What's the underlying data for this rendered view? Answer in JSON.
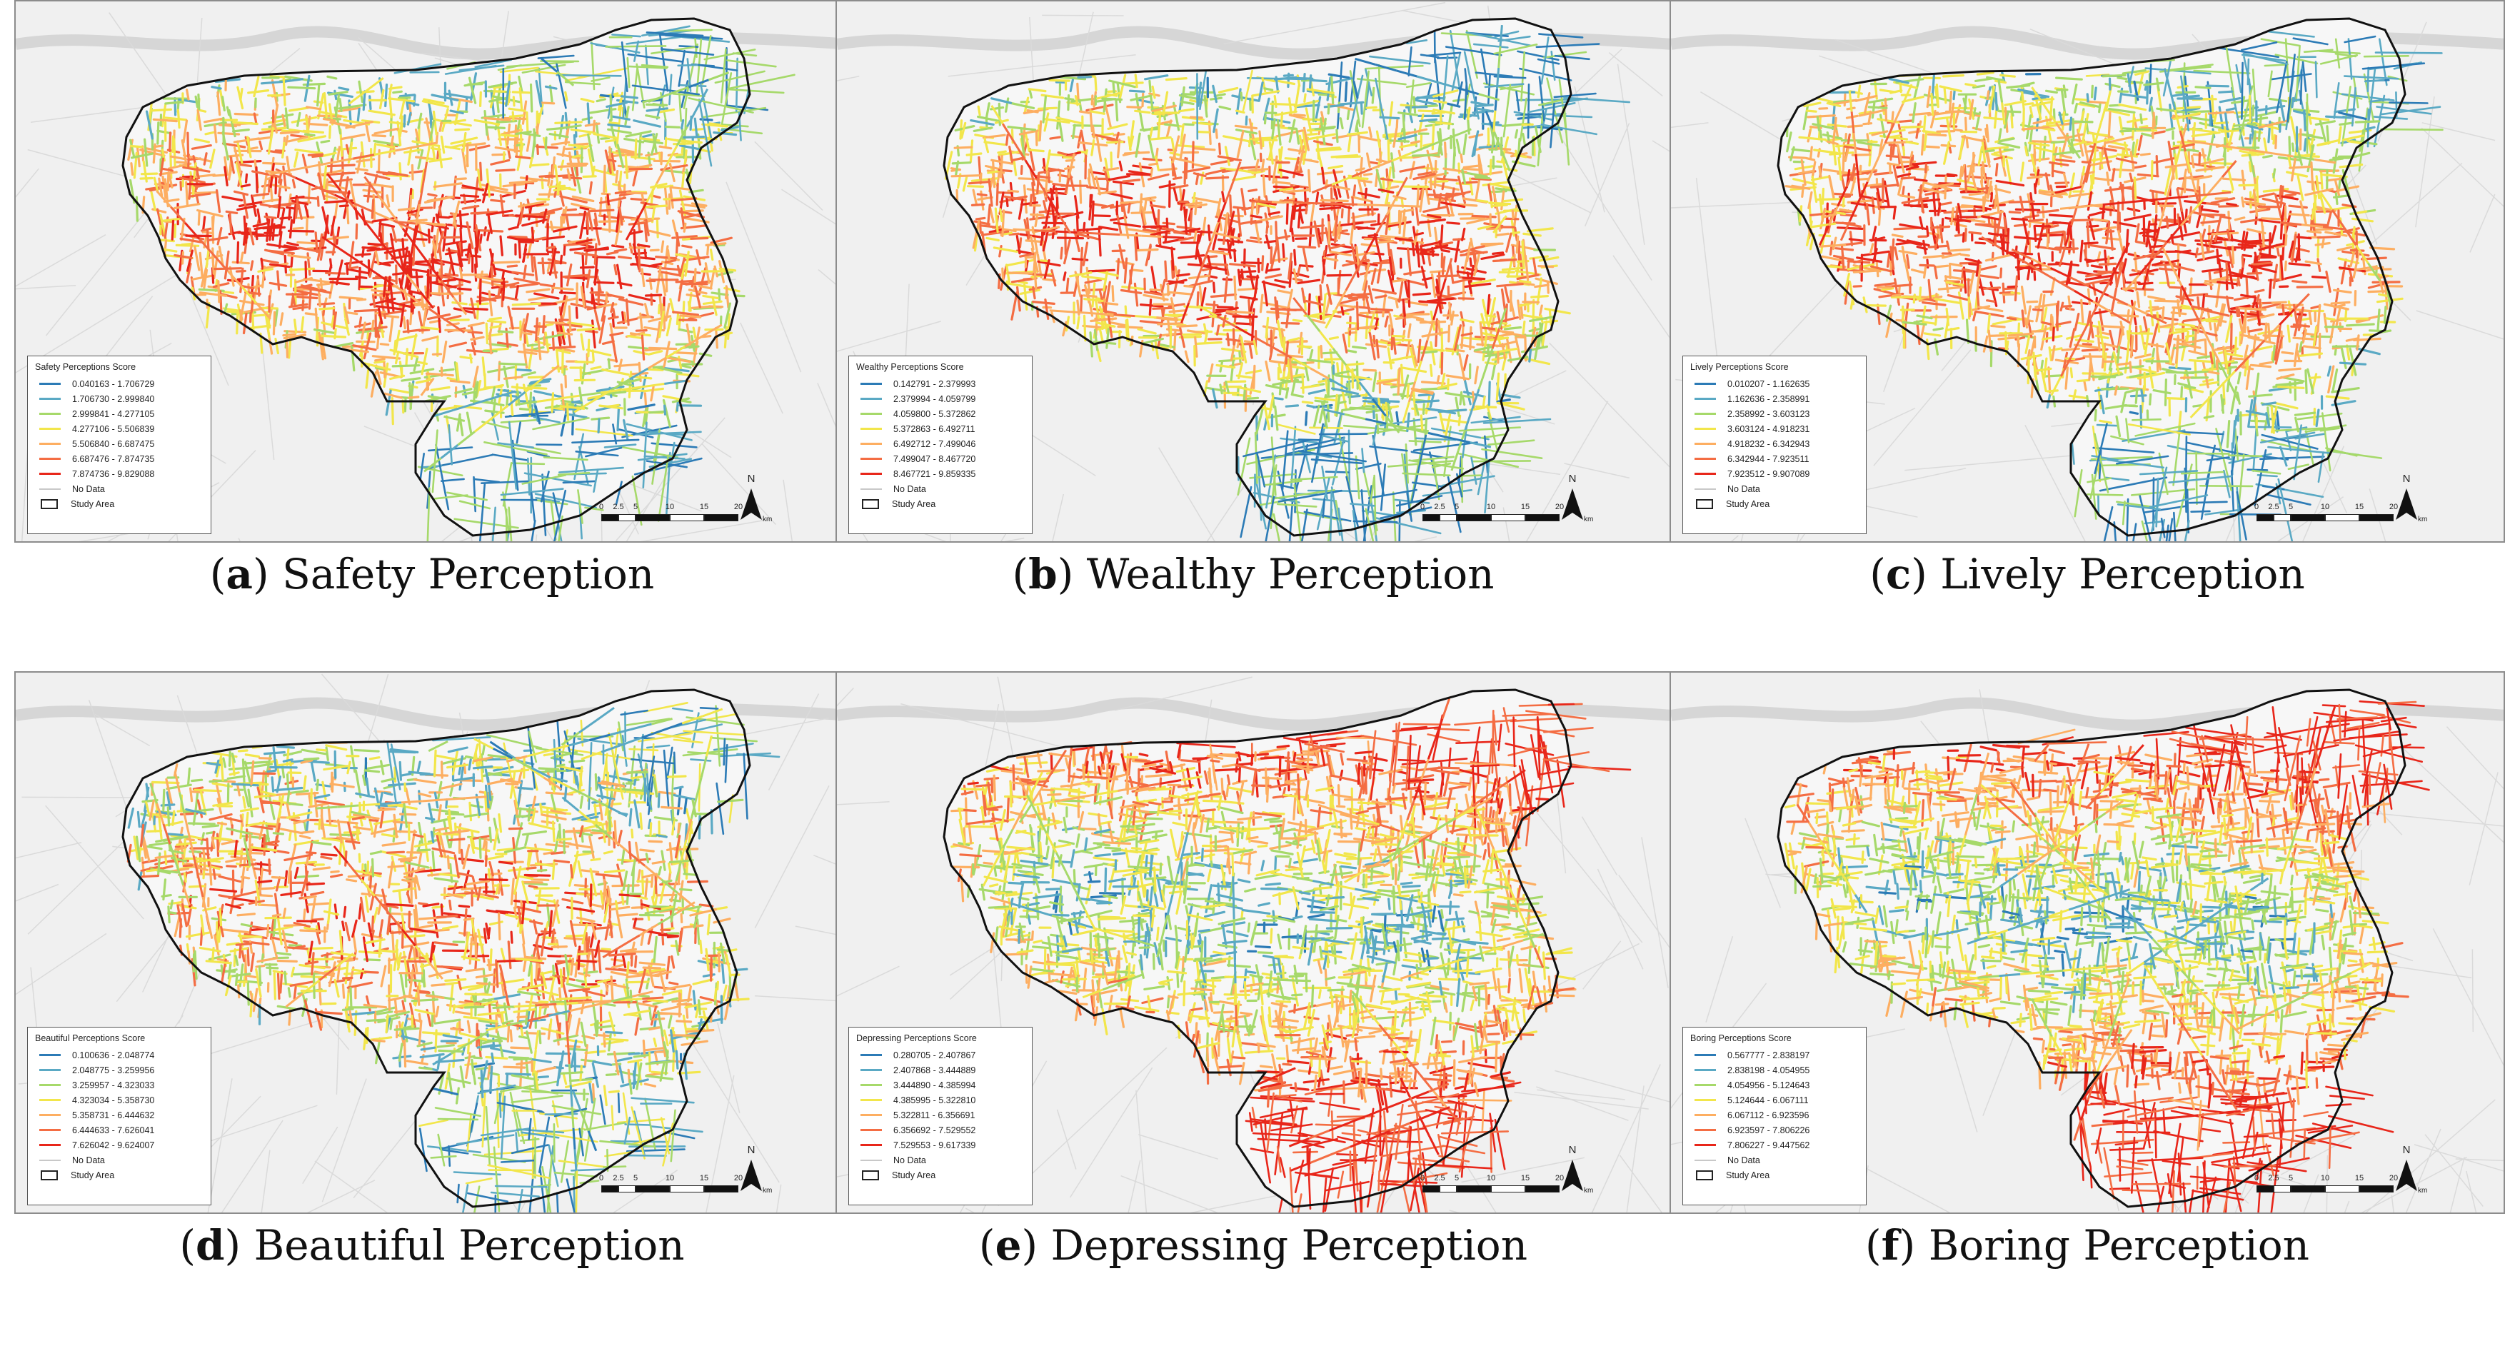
{
  "colors": {
    "class_colors": [
      "#2c7bb6",
      "#5aa9c4",
      "#a6d96a",
      "#f2e64b",
      "#fdae61",
      "#f46d43",
      "#e8261a"
    ],
    "no_data": "#c8c8c8",
    "background": "#f0f0f0",
    "boundary": "#111111"
  },
  "north_label": "N",
  "scale": {
    "ticks": [
      "0",
      "2.5",
      "5",
      "10",
      "15",
      "20"
    ],
    "unit": "km"
  },
  "panels": [
    {
      "letter": "a",
      "caption_rest": ") Safety Perception",
      "legend_title": "Safety Perceptions Score",
      "classes": [
        "0.040163 - 1.706729",
        "1.706730 - 2.999840",
        "2.999841 - 4.277105",
        "4.277106 - 5.506839",
        "5.506840 - 6.687475",
        "6.687476 - 7.874735",
        "7.874736 - 9.829088"
      ],
      "no_data": "No Data",
      "study_area": "Study Area"
    },
    {
      "letter": "b",
      "caption_rest": ") Wealthy Perception",
      "legend_title": "Wealthy Perceptions Score",
      "classes": [
        "0.142791 - 2.379993",
        "2.379994 - 4.059799",
        "4.059800 - 5.372862",
        "5.372863 - 6.492711",
        "6.492712 - 7.499046",
        "7.499047 - 8.467720",
        "8.467721 - 9.859335"
      ],
      "no_data": "No Data",
      "study_area": "Study Area"
    },
    {
      "letter": "c",
      "caption_rest": ") Lively Perception",
      "legend_title": "Lively Perceptions Score",
      "classes": [
        "0.010207 - 1.162635",
        "1.162636 - 2.358991",
        "2.358992 - 3.603123",
        "3.603124 - 4.918231",
        "4.918232 - 6.342943",
        "6.342944 - 7.923511",
        "7.923512 - 9.907089"
      ],
      "no_data": "No Data",
      "study_area": "Study Area"
    },
    {
      "letter": "d",
      "caption_rest": ") Beautiful Perception",
      "legend_title": "Beautiful Perceptions Score",
      "classes": [
        "0.100636 - 2.048774",
        "2.048775 - 3.259956",
        "3.259957 - 4.323033",
        "4.323034 - 5.358730",
        "5.358731 - 6.444632",
        "6.444633 - 7.626041",
        "7.626042 - 9.624007"
      ],
      "no_data": "No Data",
      "study_area": "Study Area"
    },
    {
      "letter": "e",
      "caption_rest": ") Depressing Perception",
      "legend_title": "Depressing Perceptions Score",
      "classes": [
        "0.280705 - 2.407867",
        "2.407868 - 3.444889",
        "3.444890 - 4.385994",
        "4.385995 - 5.322810",
        "5.322811 - 6.356691",
        "6.356692 - 7.529552",
        "7.529553 - 9.617339"
      ],
      "no_data": "No Data",
      "study_area": "Study Area"
    },
    {
      "letter": "f",
      "caption_rest": ") Boring Perception",
      "legend_title": "Boring Perceptions Score",
      "classes": [
        "0.567777 - 2.838197",
        "2.838198 - 4.054955",
        "4.054956 - 5.124643",
        "5.124644 - 6.067111",
        "6.067112 - 6.923596",
        "6.923597 - 7.806226",
        "7.806227 - 9.447562"
      ],
      "no_data": "No Data",
      "study_area": "Study Area"
    }
  ]
}
